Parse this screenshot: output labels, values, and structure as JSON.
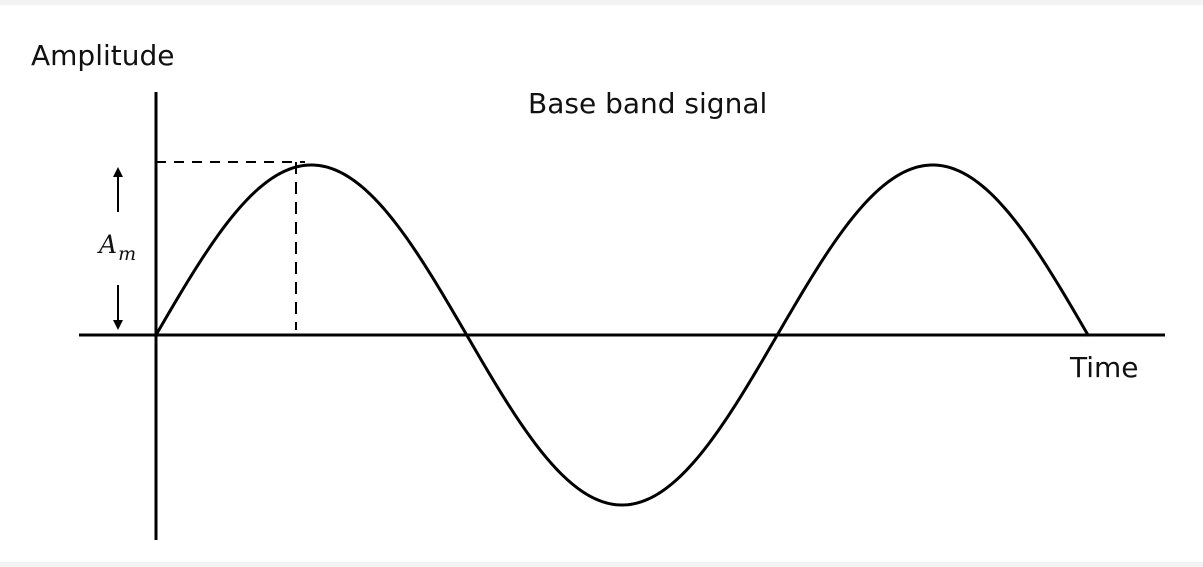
{
  "diagram": {
    "y_axis_label": "Amplitude",
    "title": "Base band signal",
    "x_axis_label": "Time",
    "amplitude_symbol": {
      "base": "A",
      "subscript": "m"
    },
    "line_color": "#000000",
    "background_color": "#ffffff"
  }
}
